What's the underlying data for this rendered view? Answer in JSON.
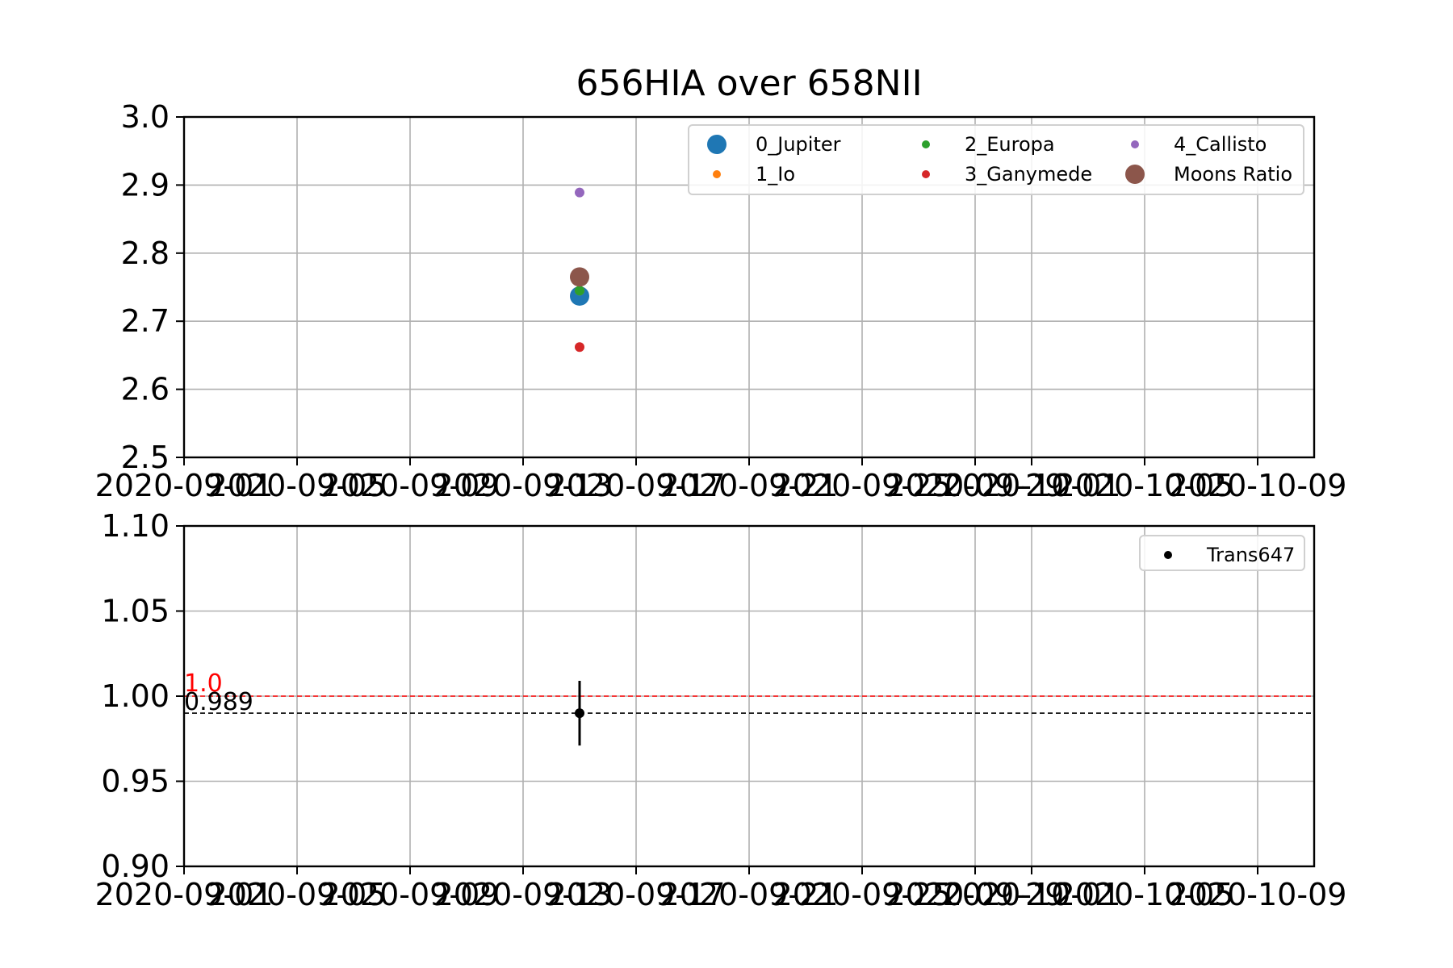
{
  "chart_data": [
    {
      "type": "scatter",
      "title": "656HIA over 658NII",
      "xlabel": "",
      "ylabel": "",
      "xlim": [
        "2020-09-01",
        "2020-10-11"
      ],
      "ylim": [
        2.5,
        3.0
      ],
      "x_ticks": [
        "2020-09-01",
        "2020-09-05",
        "2020-09-09",
        "2020-09-13",
        "2020-09-17",
        "2020-09-21",
        "2020-09-25",
        "2020-09-29",
        "2020-10-01",
        "2020-10-05",
        "2020-10-09"
      ],
      "x_tick_labels": [
        "2020-09-01",
        "2020-09-05",
        "2020-09-09",
        "2020-09-13",
        "2020-09-17",
        "2020-09-21",
        "2020-09-25",
        "2020-09-29",
        "2020-10-01",
        "2020-10-05",
        "2020-10-09"
      ],
      "y_ticks": [
        2.5,
        2.6,
        2.7,
        2.8,
        2.9,
        3.0
      ],
      "y_tick_labels": [
        "2.5",
        "2.6",
        "2.7",
        "2.8",
        "2.9",
        "3.0"
      ],
      "grid": true,
      "legend": {
        "placement": "upper-right",
        "columns": 3
      },
      "series": [
        {
          "name": "0_Jupiter",
          "color": "#1f77b4",
          "marker": "large",
          "points": [
            {
              "x": "2020-09-15",
              "y": 2.737
            }
          ]
        },
        {
          "name": "1_Io",
          "color": "#ff7f0e",
          "marker": "small",
          "points": [
            {
              "x": "2020-09-15",
              "y": 2.745
            }
          ]
        },
        {
          "name": "2_Europa",
          "color": "#2ca02c",
          "marker": "small",
          "points": [
            {
              "x": "2020-09-15",
              "y": 2.745
            }
          ]
        },
        {
          "name": "3_Ganymede",
          "color": "#d62728",
          "marker": "small",
          "points": [
            {
              "x": "2020-09-15",
              "y": 2.662
            }
          ]
        },
        {
          "name": "4_Callisto",
          "color": "#9467bd",
          "marker": "small",
          "points": [
            {
              "x": "2020-09-15",
              "y": 2.889
            }
          ]
        },
        {
          "name": "Moons Ratio",
          "color": "#8c564b",
          "marker": "large",
          "points": [
            {
              "x": "2020-09-15",
              "y": 2.765
            }
          ]
        }
      ]
    },
    {
      "type": "scatter",
      "title": "",
      "xlabel": "",
      "ylabel": "",
      "xlim": [
        "2020-09-01",
        "2020-10-11"
      ],
      "ylim": [
        0.9,
        1.1
      ],
      "x_ticks": [
        "2020-09-01",
        "2020-09-05",
        "2020-09-09",
        "2020-09-13",
        "2020-09-17",
        "2020-09-21",
        "2020-09-25",
        "2020-09-29",
        "2020-10-01",
        "2020-10-05",
        "2020-10-09"
      ],
      "x_tick_labels": [
        "2020-09-01",
        "2020-09-05",
        "2020-09-09",
        "2020-09-13",
        "2020-09-17",
        "2020-09-21",
        "2020-09-25",
        "2020-09-29",
        "2020-10-01",
        "2020-10-05",
        "2020-10-09"
      ],
      "y_ticks": [
        0.9,
        0.95,
        1.0,
        1.05,
        1.1
      ],
      "y_tick_labels": [
        "0.90",
        "0.95",
        "1.00",
        "1.05",
        "1.10"
      ],
      "grid": true,
      "legend": {
        "placement": "upper-right",
        "columns": 1
      },
      "series": [
        {
          "name": "Trans647",
          "color": "#000000",
          "marker": "small",
          "points": [
            {
              "x": "2020-09-15",
              "y": 0.99,
              "yerr": 0.019
            }
          ]
        }
      ],
      "hlines": [
        {
          "y": 1.0,
          "label": "1.0",
          "color": "#ff0000",
          "style": "dashed"
        },
        {
          "y": 0.99,
          "label": "0.989",
          "color": "#000000",
          "style": "dashed"
        }
      ]
    }
  ]
}
